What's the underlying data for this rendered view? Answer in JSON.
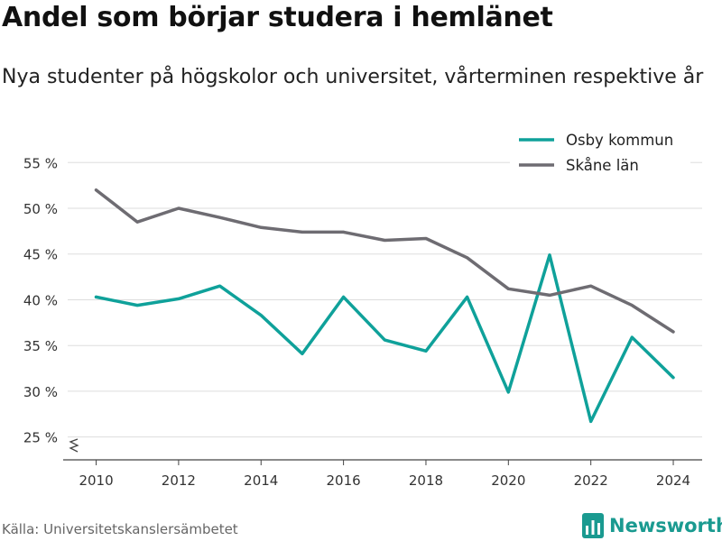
{
  "header": {
    "title": "Andel som börjar studera i hemlänet",
    "subtitle": "Nya studenter på högskolor och universitet, vårterminen respektive år"
  },
  "footer": {
    "source": "Källa: Universitetskanslersämbetet",
    "brand": "Newsworthy"
  },
  "colors": {
    "osby": "#0fa19a",
    "skane": "#6e6c72",
    "grid": "#dddddd",
    "brand": "#1a9a90"
  },
  "chart_data": {
    "type": "line",
    "title": "Andel som börjar studera i hemlänet",
    "subtitle": "Nya studenter på högskolor och universitet, vårterminen respektive år",
    "x": [
      2010,
      2011,
      2012,
      2013,
      2014,
      2015,
      2016,
      2017,
      2018,
      2019,
      2020,
      2021,
      2022,
      2023,
      2024
    ],
    "xticks": [
      2010,
      2012,
      2014,
      2016,
      2018,
      2020,
      2022,
      2024
    ],
    "yticks": [
      25,
      30,
      35,
      40,
      45,
      50,
      55
    ],
    "ytick_labels": [
      "25 %",
      "30 %",
      "35 %",
      "40 %",
      "45 %",
      "50 %",
      "55 %"
    ],
    "ylim": [
      22.5,
      57
    ],
    "xlim": [
      2009.2,
      2024.7
    ],
    "grid": true,
    "legend_position": "top-right",
    "axis_break": true,
    "series": [
      {
        "name": "Osby kommun",
        "color": "#0fa19a",
        "values": [
          40.3,
          39.4,
          40.1,
          41.5,
          38.3,
          34.1,
          40.3,
          35.6,
          34.4,
          40.3,
          29.9,
          44.9,
          26.7,
          35.9,
          31.5
        ]
      },
      {
        "name": "Skåne län",
        "color": "#6e6c72",
        "values": [
          52.0,
          48.5,
          50.0,
          49.0,
          47.9,
          47.4,
          47.4,
          46.5,
          46.7,
          44.6,
          41.2,
          40.5,
          41.5,
          39.4,
          36.5
        ]
      }
    ]
  }
}
